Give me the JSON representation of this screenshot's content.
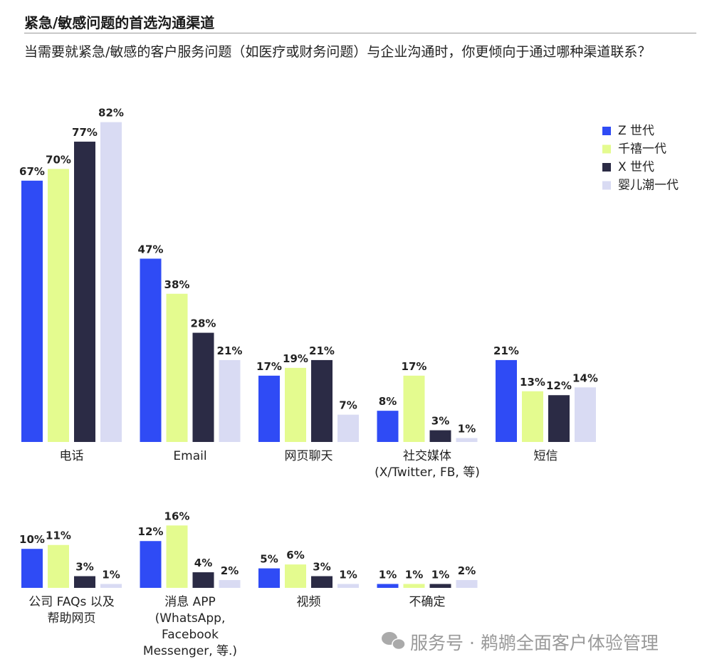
{
  "header": {
    "title": "紧急/敏感问题的首选沟通渠道",
    "subtitle": "当需要就紧急/敏感的客户服务问题（如医疗或财务问题）与企业沟通时，你更倾向于通过哪种渠道联系？"
  },
  "watermark": "服务号 · 鹈鹕全面客户体验管理",
  "chart_data": {
    "type": "bar",
    "categories": [
      "电话",
      "Email",
      "网页聊天",
      "社交媒体\n(X/Twitter, FB, 等)",
      "短信",
      "公司 FAQs 以及\n帮助网页",
      "消息 APP\n(WhatsApp,\nFacebook\nMessenger, 等.)",
      "视频",
      "不确定"
    ],
    "series": [
      {
        "name": "Z 世代",
        "color": "#2f4bf5",
        "values": [
          67,
          47,
          17,
          8,
          21,
          10,
          12,
          5,
          1
        ],
        "value_labels": [
          "67%",
          "47%",
          "17%",
          "8%",
          "21%",
          "10%",
          "12%",
          "5%",
          "1%"
        ]
      },
      {
        "name": "千禧一代",
        "color": "#e4fb8f",
        "values": [
          70,
          38,
          19,
          17,
          13,
          11,
          16,
          6,
          1
        ],
        "value_labels": [
          "70%",
          "38%",
          "19%",
          "17%",
          "13%",
          "11%",
          "16%",
          "6%",
          "1%"
        ]
      },
      {
        "name": "X 世代",
        "color": "#2b2b45",
        "values": [
          77,
          28,
          21,
          3,
          12,
          3,
          4,
          3,
          1
        ],
        "value_labels": [
          "77%",
          "28%",
          "21%",
          "3%",
          "12%",
          "3%",
          "4%",
          "3%",
          "1%"
        ]
      },
      {
        "name": "婴儿潮一代",
        "color": "#d9dbf3",
        "values": [
          82,
          21,
          7,
          1,
          14,
          1,
          2,
          1,
          2
        ],
        "value_labels": [
          "82%",
          "21%",
          "7%",
          "1%",
          "14%",
          "1%",
          "2%",
          "1%",
          "2%"
        ]
      }
    ],
    "legend": "top-right"
  }
}
